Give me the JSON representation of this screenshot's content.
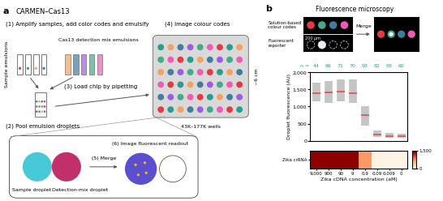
{
  "panel_a": {
    "label": "a",
    "title": "CARMEN–Cas13",
    "step1": "(1) Amplify samples, add color codes and emulsify",
    "sample_tubes": "Sample emulsions",
    "detection_tubes": "Cas13 detection mix emulsions",
    "step2": "(2) Pool emulsion droplets",
    "step3": "(3) Load chip by pipetting",
    "step4": "(4) Image colour codes",
    "chip_size": "~6 cm",
    "chip_wells": "43K–177K wells",
    "sample_droplet": "Sample droplet",
    "detection_droplet": "Detection-mix droplet",
    "step5": "(5) Merge",
    "step6": "(6) Image fluorescent readout"
  },
  "panel_b": {
    "label": "b",
    "title": "Fluorescence microscopy",
    "image_colour_codes": "Solution-based colour codes",
    "image_merge": "Merge",
    "image_reporter": "Fluorescent reporter",
    "scale_bar": "200 µm"
  },
  "chart_data": [
    {
      "type": "scatter",
      "ylabel": "Droplet fluorescence (AU)",
      "categories": [
        "9,000",
        "900",
        "90",
        "9",
        "0.9",
        "0.09",
        "0.009",
        "0"
      ],
      "values": [
        1400,
        1410,
        1430,
        1400,
        760,
        180,
        140,
        130
      ],
      "ranges": [
        [
          1150,
          1700
        ],
        [
          1100,
          1750
        ],
        [
          1150,
          1800
        ],
        [
          1100,
          1800
        ],
        [
          450,
          1000
        ],
        [
          100,
          300
        ],
        [
          80,
          230
        ],
        [
          80,
          200
        ]
      ],
      "n_label": "n =",
      "counts": [
        44,
        66,
        71,
        70,
        93,
        82,
        93,
        60
      ],
      "color": "#8c8c8c",
      "ylim": [
        0,
        2000
      ],
      "yticks": [
        0,
        500,
        {
          "value": 1000,
          "label": "1,000"
        },
        {
          "value": 1500,
          "label": "1,500"
        },
        {
          "value": 2000,
          "label": "2,000"
        }
      ],
      "tick_labels": "y"
    },
    {
      "type": "heatmap",
      "xlabel": "Zika cDNA concentration (aM)",
      "rows": [
        "Zika crRNA"
      ],
      "categories": [
        "9,000",
        "900",
        "90",
        "9",
        "0.9",
        "0.09",
        "0.009",
        "0"
      ],
      "cells": [
        [
          1450,
          1450,
          1450,
          1450,
          700,
          60,
          40,
          30
        ]
      ],
      "colorbar_range": [
        0,
        1500
      ],
      "colorbar_ticks": [
        0,
        {
          "value": 1500,
          "label": "1,500"
        }
      ]
    }
  ]
}
